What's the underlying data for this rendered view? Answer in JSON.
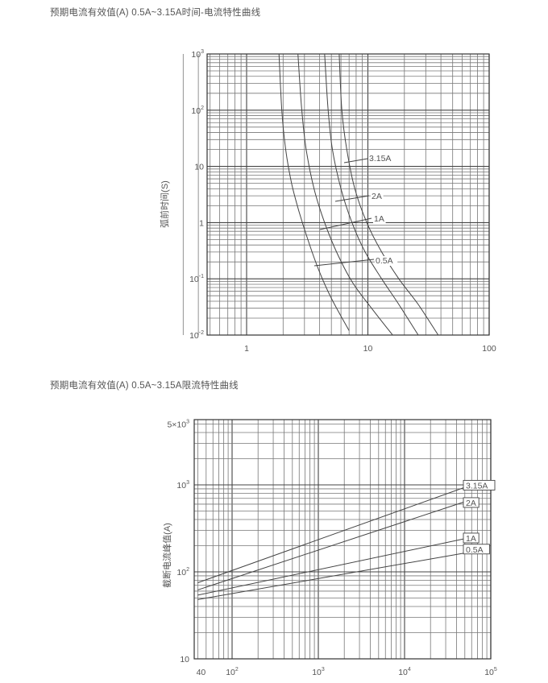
{
  "headings": {
    "top": "预期电流有效值(A) 0.5A~3.15A时间-电流特性曲线",
    "bottom": "预期电流有效值(A) 0.5A~3.15A限流特性曲线"
  },
  "chart_data": [
    {
      "type": "line",
      "title": "预期电流有效值(A) 0.5A~3.15A时间-电流特性曲线",
      "ylabel": "弧前时间(S)",
      "xlabel": "",
      "x_scale": "log",
      "y_scale": "log",
      "xlim": [
        0.3,
        100
      ],
      "ylim": [
        0.01,
        1000
      ],
      "x_ticks": [
        {
          "v": 1,
          "t": "1",
          "s": ""
        },
        {
          "v": 10,
          "t": "10",
          "s": ""
        },
        {
          "v": 100,
          "t": "100",
          "s": ""
        }
      ],
      "y_ticks": [
        {
          "v": 1000,
          "t": "10",
          "s": "3"
        },
        {
          "v": 100,
          "t": "10",
          "s": "2"
        },
        {
          "v": 10,
          "t": "10",
          "s": ""
        },
        {
          "v": 1,
          "t": "1",
          "s": ""
        },
        {
          "v": 0.1,
          "t": "10",
          "s": "-1"
        },
        {
          "v": 0.01,
          "t": "10",
          "s": "-2"
        }
      ],
      "grid": true,
      "series": [
        {
          "name": "0.5A",
          "x": [
            1.85,
            1.95,
            2.1,
            2.35,
            2.7,
            3.2,
            3.9,
            5.0,
            7.0
          ],
          "y": [
            1000,
            100,
            20,
            5,
            1.6,
            0.5,
            0.15,
            0.045,
            0.012
          ]
        },
        {
          "name": "1A",
          "x": [
            2.65,
            2.85,
            3.1,
            3.6,
            4.4,
            5.6,
            7.5,
            11,
            16
          ],
          "y": [
            1000,
            100,
            20,
            4,
            1,
            0.28,
            0.085,
            0.028,
            0.01
          ]
        },
        {
          "name": "2A",
          "x": [
            4.4,
            4.7,
            5.1,
            6.0,
            7.4,
            9.5,
            13,
            18,
            26
          ],
          "y": [
            1000,
            100,
            20,
            4,
            1,
            0.3,
            0.1,
            0.035,
            0.01
          ]
        },
        {
          "name": "3.15A",
          "x": [
            5.8,
            6.1,
            6.7,
            7.8,
            9.8,
            13,
            18,
            26,
            38
          ],
          "y": [
            1000,
            100,
            20,
            4,
            1,
            0.3,
            0.1,
            0.035,
            0.01
          ]
        }
      ],
      "annotations": [
        {
          "text": "3.15A",
          "x": 6.5,
          "y": 9
        },
        {
          "text": "2A",
          "x": 5.5,
          "y": 2.7
        },
        {
          "text": "1A",
          "x": 3.8,
          "y": 0.9
        },
        {
          "text": "0.5A",
          "x": 3.6,
          "y": 0.16
        }
      ]
    },
    {
      "type": "line",
      "title": "预期电流有效值(A) 0.5A~3.15A限流特性曲线",
      "ylabel": "截断电流峰值(A)",
      "xlabel": "",
      "x_scale": "log",
      "y_scale": "log",
      "xlim": [
        40,
        100000
      ],
      "ylim": [
        10,
        5000
      ],
      "x_ticks": [
        {
          "v": 40,
          "t": "40",
          "s": ""
        },
        {
          "v": 100,
          "t": "10",
          "s": "2"
        },
        {
          "v": 1000,
          "t": "10",
          "s": "3"
        },
        {
          "v": 10000,
          "t": "10",
          "s": "4"
        },
        {
          "v": 100000,
          "t": "10",
          "s": "5"
        }
      ],
      "y_ticks": [
        {
          "v": 5000,
          "t": "5×10",
          "s": "3"
        },
        {
          "v": 1000,
          "t": "10",
          "s": "3"
        },
        {
          "v": 100,
          "t": "10",
          "s": "2"
        },
        {
          "v": 10,
          "t": "10",
          "s": ""
        }
      ],
      "grid": true,
      "series": [
        {
          "name": "3.15A",
          "x": [
            40,
            60000
          ],
          "y": [
            75,
            1000
          ]
        },
        {
          "name": "2A",
          "x": [
            40,
            60000
          ],
          "y": [
            62,
            680
          ]
        },
        {
          "name": "1A",
          "x": [
            40,
            60000
          ],
          "y": [
            54,
            250
          ]
        },
        {
          "name": "0.5A",
          "x": [
            40,
            60000
          ],
          "y": [
            48,
            170
          ]
        }
      ],
      "annotations": [
        {
          "text": "3.15A",
          "x": 75000,
          "y": 950
        },
        {
          "text": "2A",
          "x": 75000,
          "y": 600
        },
        {
          "text": "1A",
          "x": 75000,
          "y": 235
        },
        {
          "text": "0.5A",
          "x": 75000,
          "y": 175
        }
      ]
    }
  ]
}
